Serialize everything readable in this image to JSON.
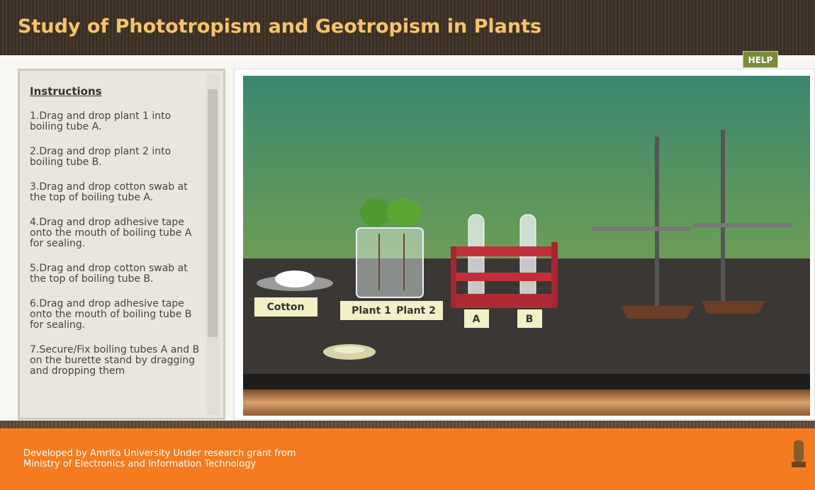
{
  "header": {
    "title": "Study of Phototropism and Geotropism in Plants",
    "help": "HELP"
  },
  "instructions": {
    "heading": "Instructions",
    "steps": [
      "1.Drag and drop plant 1 into boiling tube A.",
      "2.Drag and drop plant 2 into boiling tube B.",
      "3.Drag and drop cotton swab at the top of boiling tube A.",
      "4.Drag and drop adhesive tape onto the mouth of boiling tube A for sealing.",
      "5.Drag and drop cotton swab at the top of boiling tube B.",
      "6.Drag and drop adhesive tape onto the mouth of boiling tube B for sealing.",
      "7.Secure/Fix boiling tubes A and B on the burette stand by dragging and dropping them"
    ]
  },
  "scene": {
    "cotton": "Cotton",
    "plant1": "Plant 1",
    "plant2": "Plant 2",
    "tube_a": "A",
    "tube_b": "B"
  },
  "footer": {
    "line1": "Developed by Amrita University Under research grant from",
    "line2": "Ministry of Electronics and Information Technology"
  }
}
